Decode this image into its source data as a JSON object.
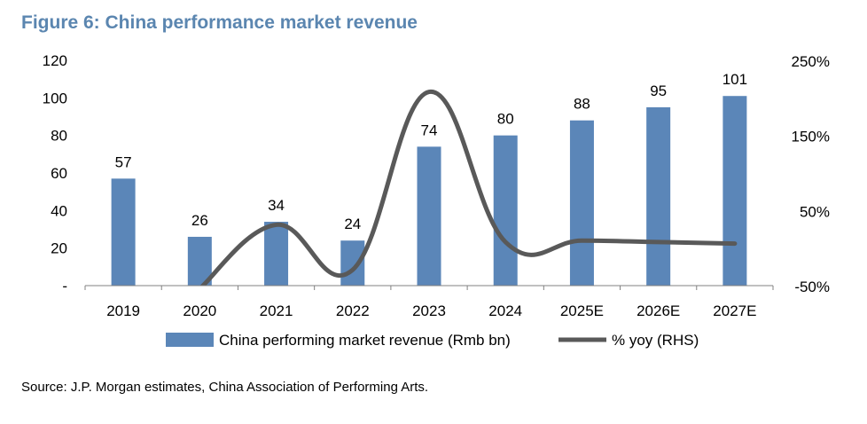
{
  "figure": {
    "title": "Figure 6: China performance market revenue",
    "source": "Source: J.P. Morgan estimates, China Association of Performing Arts."
  },
  "chart_data": {
    "type": "bar",
    "categories": [
      "2019",
      "2020",
      "2021",
      "2022",
      "2023",
      "2024",
      "2025E",
      "2026E",
      "2027E"
    ],
    "series": [
      {
        "name": "China performing market revenue (Rmb bn)",
        "type": "bar",
        "axis": "left",
        "color": "#5b86b8",
        "values": [
          57,
          26,
          34,
          24,
          74,
          80,
          88,
          95,
          101
        ],
        "data_labels": [
          "57",
          "26",
          "34",
          "24",
          "74",
          "80",
          "88",
          "95",
          "101"
        ]
      },
      {
        "name": "% yoy (RHS)",
        "type": "line",
        "axis": "right",
        "color": "#595959",
        "values": [
          null,
          -54,
          31,
          -29,
          208,
          8,
          10,
          8,
          6
        ]
      }
    ],
    "y_left": {
      "min": 0,
      "max": 120,
      "ticks": [
        0,
        20,
        40,
        60,
        80,
        100,
        120
      ],
      "tick_labels": [
        "-",
        "20",
        "40",
        "60",
        "80",
        "100",
        "120"
      ]
    },
    "y_right": {
      "min": -50,
      "max": 250,
      "ticks": [
        -50,
        50,
        150,
        250
      ],
      "tick_labels": [
        "-50%",
        "50%",
        "150%",
        "250%"
      ]
    },
    "legend_position": "bottom",
    "grid": false
  }
}
